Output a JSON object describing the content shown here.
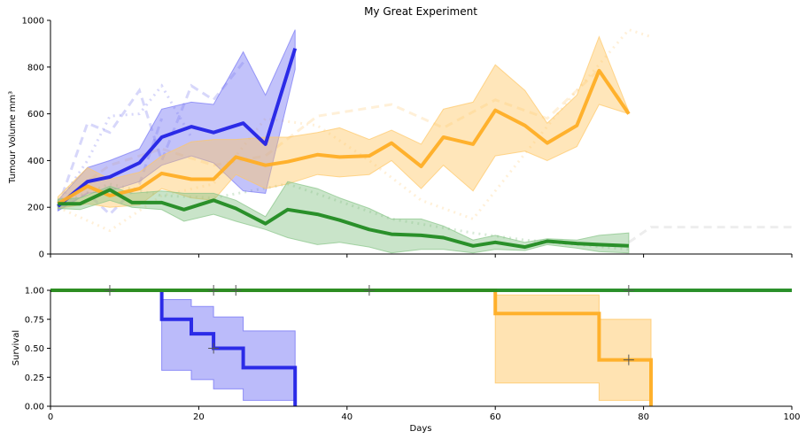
{
  "chart_data": [
    {
      "type": "line",
      "title": "My Great Experiment",
      "xlabel": "",
      "ylabel": "Tumour Volume mm³",
      "xlim": [
        0,
        100
      ],
      "ylim": [
        0,
        1000
      ],
      "xticks": [
        0,
        20,
        40,
        60,
        80,
        100
      ],
      "yticks": [
        0,
        200,
        400,
        600,
        800,
        1000
      ],
      "xtick_labels_visible": false,
      "grid": false,
      "series": [
        {
          "color": "#2323e6",
          "band_color": "#7878f5",
          "x": [
            1,
            5,
            8,
            12,
            15,
            19,
            22,
            26,
            29,
            33
          ],
          "values": [
            205,
            310,
            330,
            390,
            500,
            545,
            520,
            560,
            470,
            880
          ],
          "upper": [
            230,
            370,
            400,
            450,
            620,
            650,
            640,
            865,
            680,
            960
          ],
          "lower": [
            185,
            260,
            270,
            310,
            380,
            420,
            390,
            270,
            260,
            790
          ]
        },
        {
          "color": "#ffae25",
          "band_color": "#ffc766",
          "x": [
            1,
            5,
            8,
            12,
            15,
            19,
            22,
            25,
            29,
            32,
            36,
            39,
            43,
            46,
            50,
            53,
            57,
            60,
            64,
            67,
            71,
            74,
            78
          ],
          "values": [
            215,
            290,
            250,
            280,
            345,
            320,
            320,
            415,
            380,
            395,
            425,
            415,
            420,
            475,
            375,
            500,
            470,
            615,
            550,
            475,
            550,
            785,
            600
          ],
          "upper": [
            245,
            370,
            320,
            350,
            420,
            480,
            490,
            490,
            500,
            500,
            520,
            540,
            490,
            530,
            470,
            620,
            650,
            810,
            700,
            560,
            680,
            930,
            610
          ],
          "lower": [
            195,
            215,
            200,
            210,
            280,
            240,
            230,
            340,
            280,
            300,
            340,
            330,
            340,
            400,
            280,
            380,
            270,
            420,
            440,
            400,
            460,
            640,
            600
          ]
        },
        {
          "color": "#228b22",
          "band_color": "#88c488",
          "x": [
            1,
            4,
            8,
            11,
            15,
            18,
            22,
            25,
            29,
            32,
            36,
            39,
            43,
            46,
            50,
            53,
            57,
            60,
            64,
            67,
            71,
            74,
            78
          ],
          "values": [
            215,
            215,
            275,
            220,
            220,
            190,
            230,
            195,
            130,
            190,
            170,
            145,
            105,
            85,
            80,
            70,
            35,
            50,
            30,
            55,
            45,
            40,
            35
          ],
          "upper": [
            235,
            240,
            290,
            260,
            270,
            260,
            260,
            230,
            160,
            310,
            280,
            240,
            195,
            150,
            150,
            120,
            60,
            80,
            50,
            65,
            60,
            80,
            90
          ],
          "lower": [
            195,
            190,
            230,
            200,
            190,
            140,
            170,
            140,
            105,
            70,
            40,
            50,
            30,
            5,
            20,
            20,
            5,
            20,
            15,
            40,
            25,
            10,
            5
          ]
        }
      ],
      "individual_traces": [
        {
          "color": "#2323e6",
          "x": [
            1,
            5,
            8,
            12,
            15,
            19,
            22,
            26
          ],
          "values": [
            200,
            560,
            520,
            700,
            400,
            720,
            660,
            820
          ]
        },
        {
          "color": "#2323e6",
          "x": [
            1,
            5,
            8,
            12,
            15,
            19
          ],
          "values": [
            215,
            400,
            590,
            600,
            720,
            500
          ]
        },
        {
          "color": "#2323e6",
          "x": [
            1,
            5,
            8,
            12,
            15
          ],
          "values": [
            190,
            260,
            170,
            300,
            580
          ]
        },
        {
          "color": "#ffae25",
          "x": [
            1,
            8,
            15,
            22,
            29,
            36,
            43,
            50,
            57,
            64,
            71,
            78,
            81
          ],
          "values": [
            200,
            100,
            250,
            300,
            580,
            550,
            400,
            230,
            150,
            430,
            700,
            960,
            930
          ]
        },
        {
          "color": "#ffae25",
          "x": [
            1,
            8,
            15,
            22,
            29,
            36,
            46,
            53,
            60,
            67,
            74,
            78
          ],
          "values": [
            220,
            380,
            450,
            380,
            420,
            590,
            640,
            540,
            660,
            580,
            790,
            610
          ]
        },
        {
          "color": "#228b22",
          "x": [
            1,
            8,
            15,
            22,
            32,
            46,
            57,
            64,
            71,
            78
          ],
          "values": [
            215,
            300,
            250,
            240,
            300,
            150,
            90,
            60,
            40,
            20
          ]
        },
        {
          "color": "#999999",
          "x": [
            78,
            81,
            90,
            100
          ],
          "values": [
            50,
            115,
            115,
            115
          ]
        }
      ]
    },
    {
      "type": "line",
      "title": "",
      "xlabel": "Days",
      "ylabel": "Survival",
      "xlim": [
        0,
        100
      ],
      "ylim": [
        0,
        1
      ],
      "xticks": [
        0,
        20,
        40,
        60,
        80,
        100
      ],
      "yticks": [
        0.0,
        0.25,
        0.5,
        0.75,
        1.0
      ],
      "ytick_labels": [
        "0.00",
        "0.25",
        "0.50",
        "0.75",
        "1.00"
      ],
      "grid": false,
      "series": [
        {
          "color": "#2323e6",
          "band_color": "#7878f5",
          "step_x": [
            0,
            15,
            19,
            22,
            26,
            33
          ],
          "step_y": [
            1.0,
            0.75,
            0.625,
            0.5,
            0.333,
            0.0
          ],
          "band_upper": [
            1.0,
            0.92,
            0.86,
            0.77,
            0.65,
            0.0
          ],
          "band_lower": [
            1.0,
            0.31,
            0.23,
            0.15,
            0.05,
            0.0
          ],
          "censor_x": [
            22
          ],
          "censor_y": [
            0.5
          ]
        },
        {
          "color": "#ffae25",
          "band_color": "#ffc766",
          "step_x": [
            0,
            60,
            74,
            81
          ],
          "step_y": [
            1.0,
            0.8,
            0.4,
            0.0
          ],
          "band_upper": [
            1.0,
            0.96,
            0.75,
            0.0
          ],
          "band_lower": [
            1.0,
            0.2,
            0.05,
            0.0
          ],
          "censor_x": [
            22,
            25,
            78
          ],
          "censor_y": [
            1.0,
            1.0,
            0.4
          ]
        },
        {
          "color": "#228b22",
          "band_color": "#88c488",
          "step_x": [
            0,
            100
          ],
          "step_y": [
            1.0,
            1.0
          ],
          "band_upper": [
            1.0,
            1.0
          ],
          "band_lower": [
            1.0,
            1.0
          ],
          "censor_x": [
            8,
            43,
            78
          ],
          "censor_y": [
            1.0,
            1.0,
            1.0
          ]
        }
      ]
    }
  ]
}
